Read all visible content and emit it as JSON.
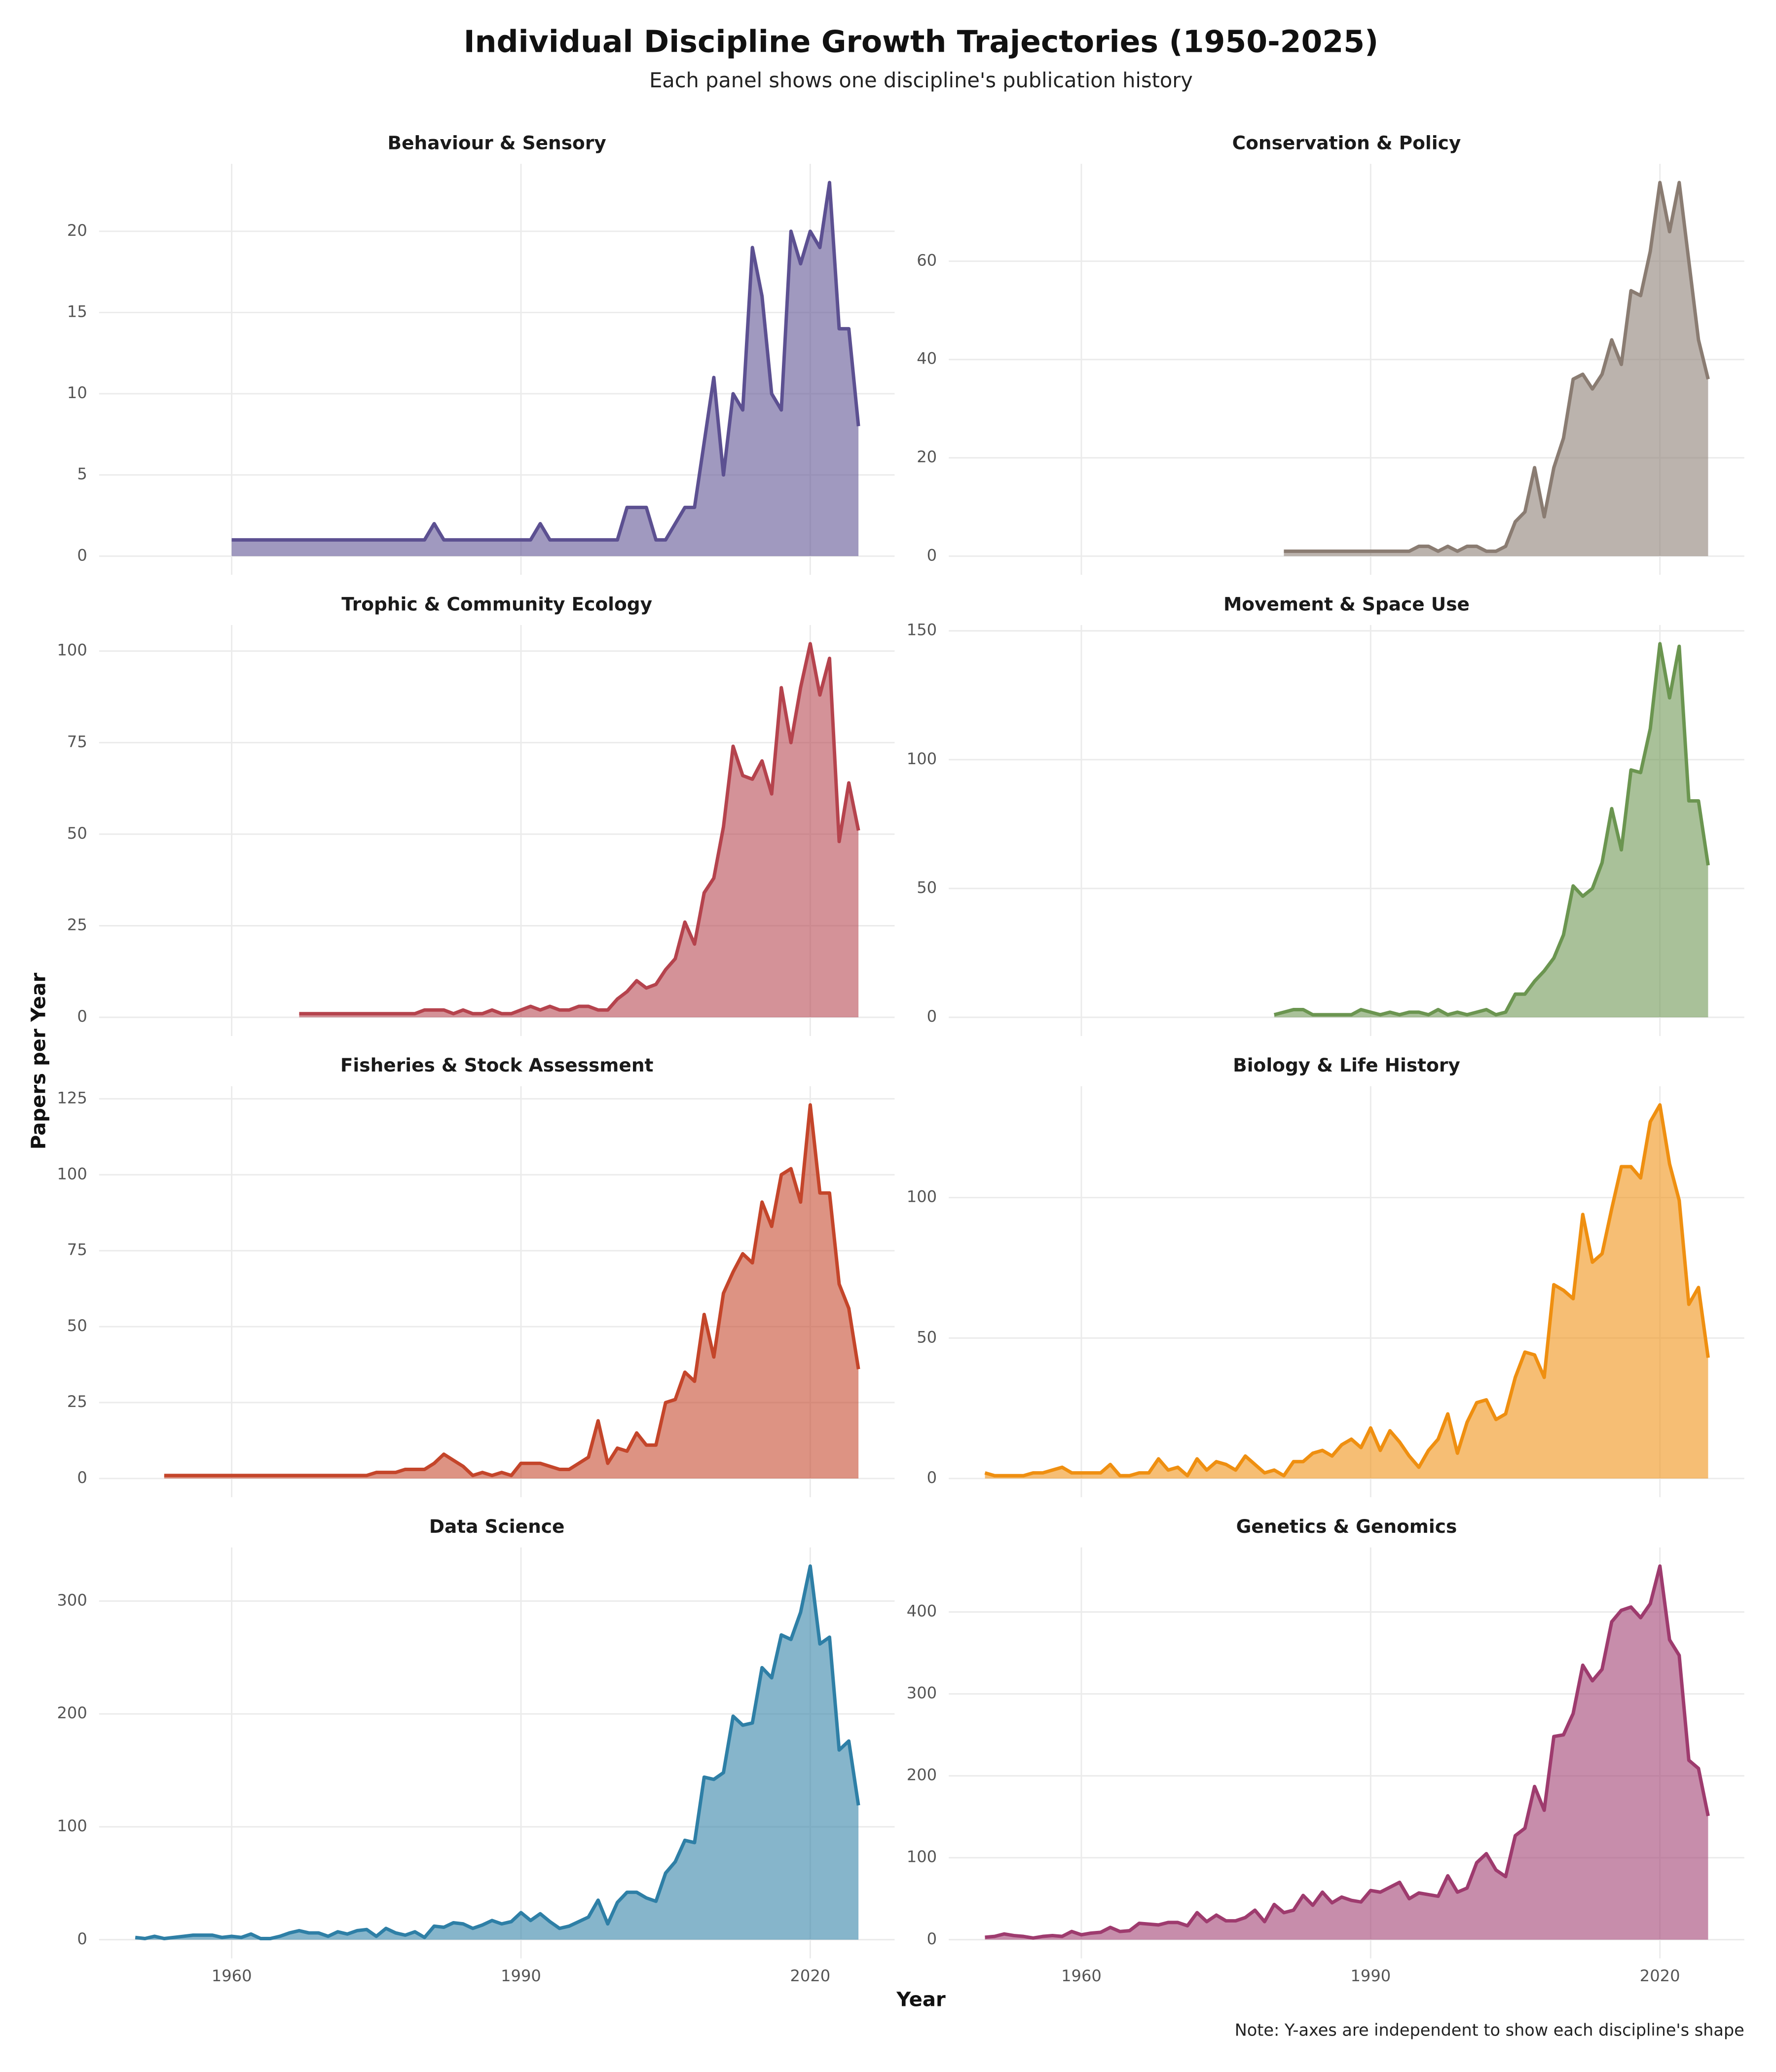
{
  "title": "Individual Discipline Growth Trajectories (1950-2025)",
  "subtitle": "Each panel shows one discipline's publication history",
  "x_label": "Year",
  "y_label": "Papers per Year",
  "note": "Note: Y-axes are independent to show each discipline's shape",
  "chart_data": [
    {
      "type": "area",
      "title": "Behaviour & Sensory",
      "color": "#5c5091",
      "xlim": [
        1946.25,
        2028.75
      ],
      "xticks": [
        1960,
        1990,
        2020
      ],
      "ylim": [
        -1.15,
        24.15
      ],
      "yticks": [
        0,
        5,
        10,
        15,
        20
      ],
      "grid": true,
      "x": [
        1960,
        1961,
        1962,
        1963,
        1964,
        1965,
        1966,
        1967,
        1968,
        1969,
        1970,
        1971,
        1972,
        1973,
        1974,
        1975,
        1976,
        1977,
        1978,
        1979,
        1980,
        1981,
        1982,
        1983,
        1984,
        1985,
        1986,
        1987,
        1988,
        1989,
        1990,
        1991,
        1992,
        1993,
        1994,
        1995,
        1996,
        1997,
        1998,
        1999,
        2000,
        2001,
        2002,
        2003,
        2004,
        2005,
        2006,
        2007,
        2008,
        2009,
        2010,
        2011,
        2012,
        2013,
        2014,
        2015,
        2016,
        2017,
        2018,
        2019,
        2020,
        2021,
        2022,
        2023,
        2024,
        2025
      ],
      "values": [
        1,
        1,
        1,
        1,
        1,
        1,
        1,
        1,
        1,
        1,
        1,
        1,
        1,
        1,
        1,
        1,
        1,
        1,
        1,
        1,
        1,
        2,
        1,
        1,
        1,
        1,
        1,
        1,
        1,
        1,
        1,
        1,
        2,
        1,
        1,
        1,
        1,
        1,
        1,
        1,
        1,
        3,
        3,
        3,
        1,
        1,
        2,
        3,
        3,
        7,
        11,
        5,
        10,
        9,
        19,
        16,
        10,
        9,
        20,
        18,
        20,
        19,
        23,
        14,
        14,
        8
      ]
    },
    {
      "type": "area",
      "title": "Conservation & Policy",
      "color": "#8a7c72",
      "xlim": [
        1946.25,
        2028.75
      ],
      "xticks": [
        1960,
        1990,
        2020
      ],
      "ylim": [
        -3.8,
        79.8
      ],
      "yticks": [
        0,
        20,
        40,
        60
      ],
      "grid": true,
      "x": [
        1981,
        1982,
        1983,
        1984,
        1985,
        1986,
        1987,
        1988,
        1989,
        1990,
        1991,
        1992,
        1993,
        1994,
        1995,
        1996,
        1997,
        1998,
        1999,
        2000,
        2001,
        2002,
        2003,
        2004,
        2005,
        2006,
        2007,
        2008,
        2009,
        2010,
        2011,
        2012,
        2013,
        2014,
        2015,
        2016,
        2017,
        2018,
        2019,
        2020,
        2021,
        2022,
        2023,
        2024,
        2025
      ],
      "values": [
        1,
        1,
        1,
        1,
        1,
        1,
        1,
        1,
        1,
        1,
        1,
        1,
        1,
        1,
        2,
        2,
        1,
        2,
        1,
        2,
        2,
        1,
        1,
        2,
        7,
        9,
        18,
        8,
        18,
        24,
        36,
        37,
        34,
        37,
        44,
        39,
        54,
        53,
        62,
        76,
        66,
        76,
        60,
        44,
        36
      ]
    },
    {
      "type": "area",
      "title": "Trophic & Community Ecology",
      "color": "#b5434d",
      "xlim": [
        1946.25,
        2028.75
      ],
      "xticks": [
        1960,
        1990,
        2020
      ],
      "ylim": [
        -5.1,
        107.1
      ],
      "yticks": [
        0,
        25,
        50,
        75,
        100
      ],
      "grid": true,
      "x": [
        1967,
        1968,
        1969,
        1970,
        1971,
        1972,
        1973,
        1974,
        1975,
        1976,
        1977,
        1978,
        1979,
        1980,
        1981,
        1982,
        1983,
        1984,
        1985,
        1986,
        1987,
        1988,
        1989,
        1990,
        1991,
        1992,
        1993,
        1994,
        1995,
        1996,
        1997,
        1998,
        1999,
        2000,
        2001,
        2002,
        2003,
        2004,
        2005,
        2006,
        2007,
        2008,
        2009,
        2010,
        2011,
        2012,
        2013,
        2014,
        2015,
        2016,
        2017,
        2018,
        2019,
        2020,
        2021,
        2022,
        2023,
        2024,
        2025
      ],
      "values": [
        1,
        1,
        1,
        1,
        1,
        1,
        1,
        1,
        1,
        1,
        1,
        1,
        1,
        2,
        2,
        2,
        1,
        2,
        1,
        1,
        2,
        1,
        1,
        2,
        3,
        2,
        3,
        2,
        2,
        3,
        3,
        2,
        2,
        5,
        7,
        10,
        8,
        9,
        13,
        16,
        26,
        20,
        34,
        38,
        52,
        74,
        66,
        65,
        70,
        61,
        90,
        75,
        90,
        102,
        88,
        98,
        48,
        64,
        51
      ]
    },
    {
      "type": "area",
      "title": "Movement & Space Use",
      "color": "#6b9550",
      "xlim": [
        1946.25,
        2028.75
      ],
      "xticks": [
        1960,
        1990,
        2020
      ],
      "ylim": [
        -7.25,
        152.25
      ],
      "yticks": [
        0,
        50,
        100,
        150
      ],
      "grid": true,
      "x": [
        1980,
        1981,
        1982,
        1983,
        1984,
        1985,
        1986,
        1987,
        1988,
        1989,
        1990,
        1991,
        1992,
        1993,
        1994,
        1995,
        1996,
        1997,
        1998,
        1999,
        2000,
        2001,
        2002,
        2003,
        2004,
        2005,
        2006,
        2007,
        2008,
        2009,
        2010,
        2011,
        2012,
        2013,
        2014,
        2015,
        2016,
        2017,
        2018,
        2019,
        2020,
        2021,
        2022,
        2023,
        2024,
        2025
      ],
      "values": [
        1,
        2,
        3,
        3,
        1,
        1,
        1,
        1,
        1,
        3,
        2,
        1,
        2,
        1,
        2,
        2,
        1,
        3,
        1,
        2,
        1,
        2,
        3,
        1,
        2,
        9,
        9,
        14,
        18,
        23,
        32,
        51,
        47,
        50,
        60,
        81,
        65,
        96,
        95,
        112,
        145,
        124,
        144,
        84,
        84,
        59
      ]
    },
    {
      "type": "area",
      "title": "Fisheries & Stock Assessment",
      "color": "#c4452a",
      "xlim": [
        1946.25,
        2028.75
      ],
      "xticks": [
        1960,
        1990,
        2020
      ],
      "ylim": [
        -6.15,
        129.15
      ],
      "yticks": [
        0,
        25,
        50,
        75,
        100,
        125
      ],
      "grid": true,
      "x": [
        1953,
        1954,
        1955,
        1956,
        1957,
        1958,
        1959,
        1960,
        1961,
        1962,
        1963,
        1964,
        1965,
        1966,
        1967,
        1968,
        1969,
        1970,
        1971,
        1972,
        1973,
        1974,
        1975,
        1976,
        1977,
        1978,
        1979,
        1980,
        1981,
        1982,
        1983,
        1984,
        1985,
        1986,
        1987,
        1988,
        1989,
        1990,
        1991,
        1992,
        1993,
        1994,
        1995,
        1996,
        1997,
        1998,
        1999,
        2000,
        2001,
        2002,
        2003,
        2004,
        2005,
        2006,
        2007,
        2008,
        2009,
        2010,
        2011,
        2012,
        2013,
        2014,
        2015,
        2016,
        2017,
        2018,
        2019,
        2020,
        2021,
        2022,
        2023,
        2024,
        2025
      ],
      "values": [
        1,
        1,
        1,
        1,
        1,
        1,
        1,
        1,
        1,
        1,
        1,
        1,
        1,
        1,
        1,
        1,
        1,
        1,
        1,
        1,
        1,
        1,
        2,
        2,
        2,
        3,
        3,
        3,
        5,
        8,
        6,
        4,
        1,
        2,
        1,
        2,
        1,
        5,
        5,
        5,
        4,
        3,
        3,
        5,
        7,
        19,
        5,
        10,
        9,
        15,
        11,
        11,
        25,
        26,
        35,
        32,
        54,
        40,
        61,
        68,
        74,
        71,
        91,
        83,
        100,
        102,
        91,
        123,
        94,
        94,
        64,
        56,
        36
      ]
    },
    {
      "type": "area",
      "title": "Biology & Life History",
      "color": "#ef8f10",
      "xlim": [
        1946.25,
        2028.75
      ],
      "xticks": [
        1960,
        1990,
        2020
      ],
      "ylim": [
        -6.65,
        139.65
      ],
      "yticks": [
        0,
        50,
        100
      ],
      "grid": true,
      "x": [
        1950,
        1951,
        1952,
        1953,
        1954,
        1955,
        1956,
        1957,
        1958,
        1959,
        1960,
        1961,
        1962,
        1963,
        1964,
        1965,
        1966,
        1967,
        1968,
        1969,
        1970,
        1971,
        1972,
        1973,
        1974,
        1975,
        1976,
        1977,
        1978,
        1979,
        1980,
        1981,
        1982,
        1983,
        1984,
        1985,
        1986,
        1987,
        1988,
        1989,
        1990,
        1991,
        1992,
        1993,
        1994,
        1995,
        1996,
        1997,
        1998,
        1999,
        2000,
        2001,
        2002,
        2003,
        2004,
        2005,
        2006,
        2007,
        2008,
        2009,
        2010,
        2011,
        2012,
        2013,
        2014,
        2015,
        2016,
        2017,
        2018,
        2019,
        2020,
        2021,
        2022,
        2023,
        2024,
        2025
      ],
      "values": [
        2,
        1,
        1,
        1,
        1,
        2,
        2,
        3,
        4,
        2,
        2,
        2,
        2,
        5,
        1,
        1,
        2,
        2,
        7,
        3,
        4,
        1,
        7,
        3,
        6,
        5,
        3,
        8,
        5,
        2,
        3,
        1,
        6,
        6,
        9,
        10,
        8,
        12,
        14,
        11,
        18,
        10,
        17,
        13,
        8,
        4,
        10,
        14,
        23,
        9,
        20,
        27,
        28,
        21,
        23,
        36,
        45,
        44,
        36,
        69,
        67,
        64,
        94,
        77,
        80,
        96,
        111,
        111,
        107,
        127,
        133,
        112,
        99,
        62,
        68,
        43
      ]
    },
    {
      "type": "area",
      "title": "Data Science",
      "color": "#2e7fa6",
      "xlim": [
        1946.25,
        2028.75
      ],
      "xticks": [
        1960,
        1990,
        2020
      ],
      "ylim": [
        -16.55,
        347.55
      ],
      "yticks": [
        0,
        100,
        200,
        300
      ],
      "grid": true,
      "x": [
        1950,
        1951,
        1952,
        1953,
        1954,
        1955,
        1956,
        1957,
        1958,
        1959,
        1960,
        1961,
        1962,
        1963,
        1964,
        1965,
        1966,
        1967,
        1968,
        1969,
        1970,
        1971,
        1972,
        1973,
        1974,
        1975,
        1976,
        1977,
        1978,
        1979,
        1980,
        1981,
        1982,
        1983,
        1984,
        1985,
        1986,
        1987,
        1988,
        1989,
        1990,
        1991,
        1992,
        1993,
        1994,
        1995,
        1996,
        1997,
        1998,
        1999,
        2000,
        2001,
        2002,
        2003,
        2004,
        2005,
        2006,
        2007,
        2008,
        2009,
        2010,
        2011,
        2012,
        2013,
        2014,
        2015,
        2016,
        2017,
        2018,
        2019,
        2020,
        2021,
        2022,
        2023,
        2024,
        2025
      ],
      "values": [
        2,
        1,
        3,
        1,
        2,
        3,
        4,
        4,
        4,
        2,
        3,
        2,
        5,
        1,
        1,
        3,
        6,
        8,
        6,
        6,
        3,
        7,
        5,
        8,
        9,
        3,
        10,
        6,
        4,
        7,
        2,
        12,
        11,
        15,
        14,
        10,
        13,
        17,
        14,
        16,
        24,
        17,
        23,
        16,
        10,
        12,
        16,
        20,
        35,
        14,
        33,
        42,
        42,
        37,
        34,
        59,
        69,
        88,
        86,
        144,
        142,
        148,
        198,
        190,
        192,
        241,
        232,
        270,
        266,
        290,
        331,
        262,
        268,
        168,
        176,
        119
      ]
    },
    {
      "type": "area",
      "title": "Genetics & Genomics",
      "color": "#9e3b6e",
      "xlim": [
        1946.25,
        2028.75
      ],
      "xticks": [
        1960,
        1990,
        2020
      ],
      "ylim": [
        -22.8,
        478.8
      ],
      "yticks": [
        0,
        100,
        200,
        300,
        400
      ],
      "grid": true,
      "x": [
        1950,
        1951,
        1952,
        1953,
        1954,
        1955,
        1956,
        1957,
        1958,
        1959,
        1960,
        1961,
        1962,
        1963,
        1964,
        1965,
        1966,
        1967,
        1968,
        1969,
        1970,
        1971,
        1972,
        1973,
        1974,
        1975,
        1976,
        1977,
        1978,
        1979,
        1980,
        1981,
        1982,
        1983,
        1984,
        1985,
        1986,
        1987,
        1988,
        1989,
        1990,
        1991,
        1992,
        1993,
        1994,
        1995,
        1996,
        1997,
        1998,
        1999,
        2000,
        2001,
        2002,
        2003,
        2004,
        2005,
        2006,
        2007,
        2008,
        2009,
        2010,
        2011,
        2012,
        2013,
        2014,
        2015,
        2016,
        2017,
        2018,
        2019,
        2020,
        2021,
        2022,
        2023,
        2024,
        2025
      ],
      "values": [
        3,
        4,
        7,
        5,
        4,
        2,
        4,
        5,
        4,
        10,
        6,
        8,
        9,
        15,
        10,
        11,
        20,
        19,
        18,
        21,
        21,
        17,
        33,
        22,
        30,
        23,
        23,
        27,
        36,
        22,
        43,
        33,
        36,
        54,
        42,
        58,
        45,
        52,
        48,
        46,
        60,
        58,
        64,
        70,
        50,
        57,
        55,
        53,
        78,
        58,
        63,
        94,
        105,
        85,
        77,
        127,
        136,
        187,
        158,
        248,
        250,
        276,
        335,
        316,
        330,
        388,
        402,
        406,
        393,
        410,
        456,
        366,
        347,
        219,
        209,
        151
      ]
    }
  ]
}
